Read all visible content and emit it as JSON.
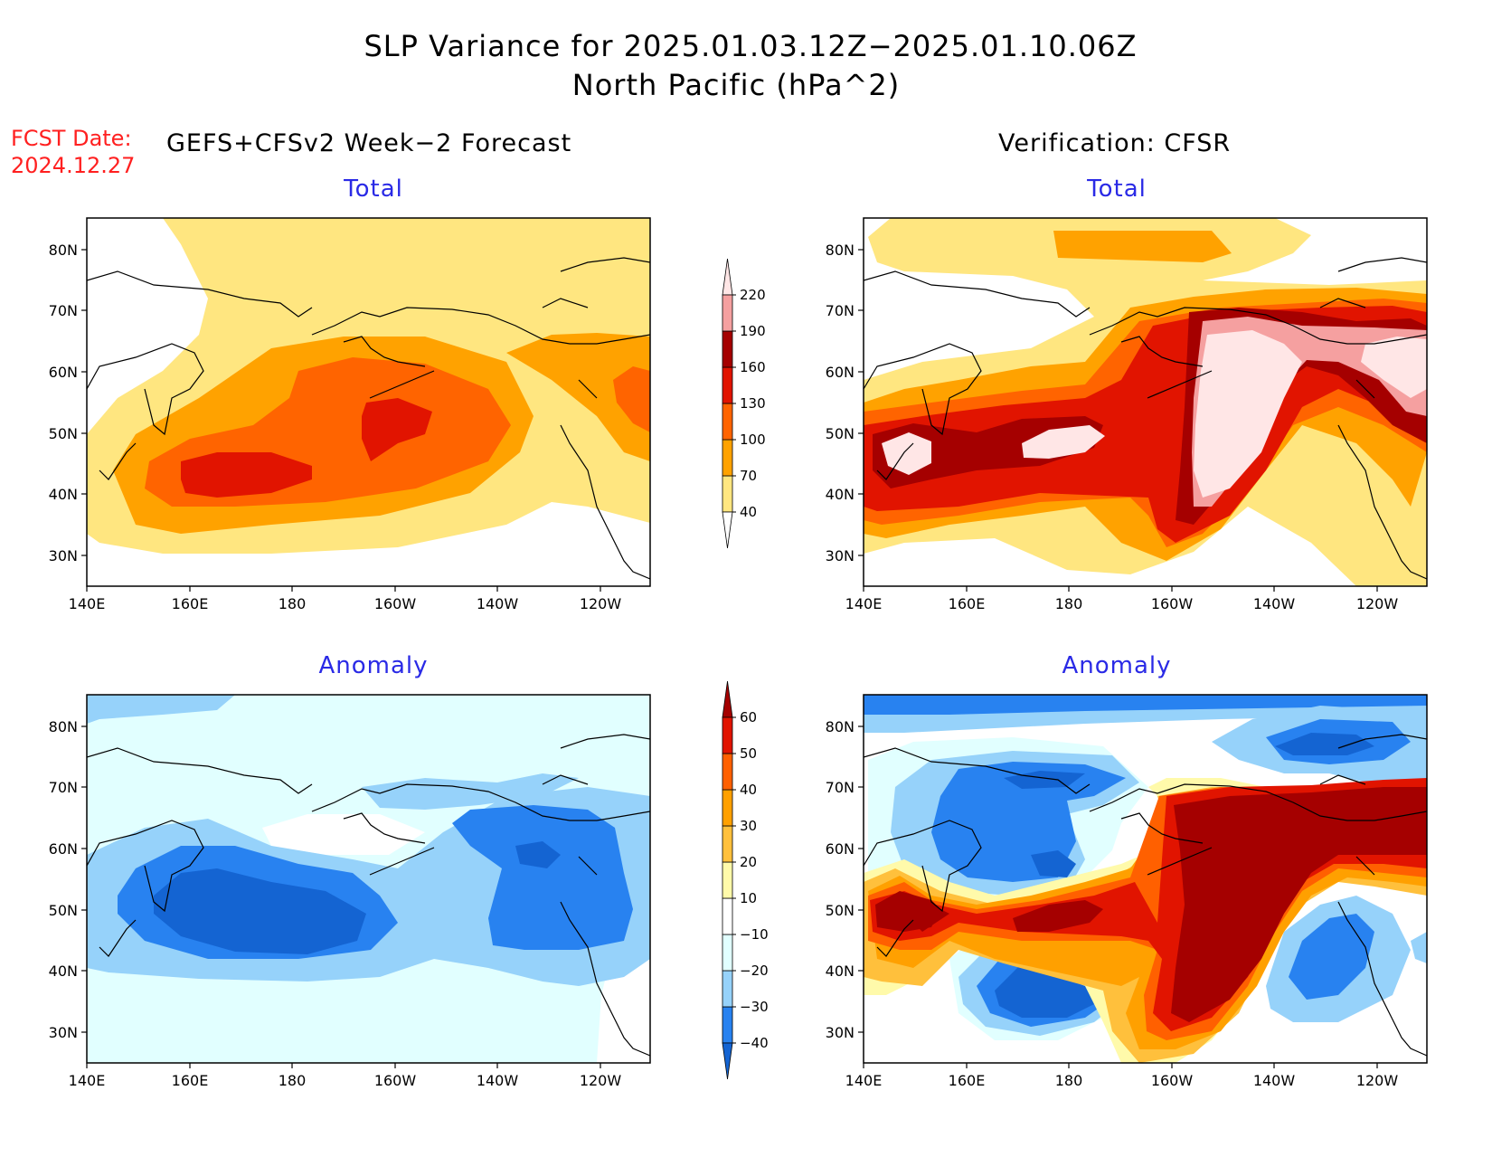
{
  "header": {
    "title_line1": "SLP Variance for 2025.01.03.12Z−2025.01.10.06Z",
    "title_line2": "North Pacific (hPa^2)",
    "fcst_label": "FCST Date:",
    "fcst_date": "2024.12.27",
    "left_column_title": "GEFS+CFSv2 Week−2 Forecast",
    "right_column_title": "Verification: CFSR"
  },
  "panels": {
    "top_left_title": "Total",
    "top_right_title": "Total",
    "bottom_left_title": "Anomaly",
    "bottom_right_title": "Anomaly"
  },
  "axes": {
    "lat_ticks": [
      "80N",
      "70N",
      "60N",
      "50N",
      "40N",
      "30N"
    ],
    "lon_ticks": [
      "140E",
      "160E",
      "180",
      "160W",
      "140W",
      "120W"
    ]
  },
  "colorbar_total": {
    "levels": [
      "40",
      "70",
      "100",
      "130",
      "160",
      "190",
      "220"
    ],
    "colors": [
      "#ffe680",
      "#ffa200",
      "#ff6400",
      "#e11400",
      "#a50000",
      "#f5a0a0",
      "#ffe6e6"
    ]
  },
  "colorbar_anomaly": {
    "levels": [
      "−40",
      "−30",
      "−20",
      "−10",
      "10",
      "20",
      "30",
      "40",
      "50",
      "60"
    ],
    "colors": [
      "#1464d2",
      "#2882f0",
      "#96d2fa",
      "#e1ffff",
      "#ffffff",
      "#fffaaa",
      "#ffc03c",
      "#ffa000",
      "#ff6000",
      "#e11400",
      "#a50000"
    ]
  }
}
